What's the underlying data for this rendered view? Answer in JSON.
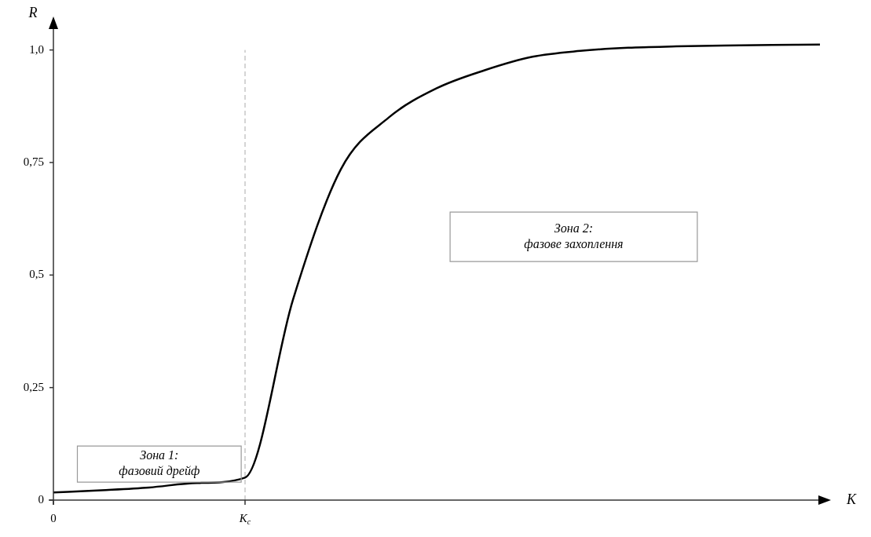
{
  "chart_data": {
    "type": "line",
    "xlabel": "K",
    "ylabel": "R",
    "categories": [
      "0",
      null,
      null,
      null,
      "K$_{c}$",
      null,
      null,
      null,
      null,
      null,
      null,
      null,
      null,
      null,
      null,
      null,
      null
    ],
    "series": [
      {
        "color": "#000000",
        "values": [
          0.017,
          0.022,
          0.028,
          0.038,
          0.05,
          0.445,
          0.735,
          0.85,
          0.915,
          0.955,
          0.985,
          0.998,
          1.005,
          1.008,
          1.01,
          1.011,
          1.012
        ]
      }
    ],
    "ylim": [
      0,
      1.05
    ],
    "yticks": [
      0,
      {
        "value": 0.25,
        "label": "0,25"
      },
      {
        "value": 0.5,
        "label": "0,5"
      },
      {
        "value": 0.75,
        "label": "0,75"
      },
      {
        "value": 1,
        "label": "1,0"
      }
    ],
    "ref_lines": [
      {
        "axis": "x",
        "value": "K$_{c}$",
        "color": "#aaaaaa",
        "line_style": "dashed"
      }
    ],
    "annotations": [
      "Зона 1:\nфазовий дрейф",
      "Зона 2:\nфазове захоплення"
    ],
    "marker": "none",
    "line_style": "solid",
    "legend": false,
    "grid": false
  }
}
